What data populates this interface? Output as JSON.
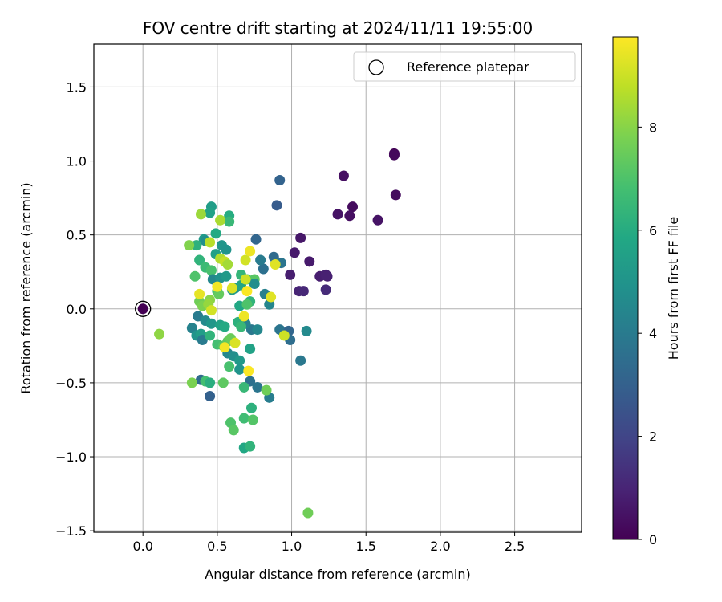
{
  "chart_data": {
    "type": "scatter",
    "title": "FOV centre drift starting at 2024/11/11 19:55:00",
    "xlabel": "Angular distance from reference (arcmin)",
    "ylabel": "Rotation from reference (arcmin)",
    "xlim": [
      -0.33,
      2.95
    ],
    "ylim": [
      -1.51,
      1.79
    ],
    "xticks": [
      0.0,
      0.5,
      1.0,
      1.5,
      2.0,
      2.5
    ],
    "xtick_labels": [
      "0.0",
      "0.5",
      "1.0",
      "1.5",
      "2.0",
      "2.5"
    ],
    "yticks": [
      -1.5,
      -1.0,
      -0.5,
      0.0,
      0.5,
      1.0,
      1.5
    ],
    "ytick_labels": [
      "−1.5",
      "−1.0",
      "−0.5",
      "0.0",
      "0.5",
      "1.0",
      "1.5"
    ],
    "grid": true,
    "legend": {
      "position": "top-right",
      "entries": [
        "Reference platepar"
      ]
    },
    "reference_point": {
      "x": 0.0,
      "y": 0.0,
      "label": "Reference platepar"
    },
    "colorbar": {
      "label": "Hours from first FF file",
      "colormap": "viridis",
      "range": [
        0,
        9.75
      ],
      "ticks": [
        0,
        2,
        4,
        6,
        8
      ],
      "tick_labels": [
        "0",
        "2",
        "4",
        "6",
        "8"
      ]
    },
    "points": [
      {
        "x": 1.69,
        "y": 1.05,
        "c": 0.1
      },
      {
        "x": 1.69,
        "y": 1.04,
        "c": 0.2
      },
      {
        "x": 1.7,
        "y": 0.77,
        "c": 0.3
      },
      {
        "x": 1.35,
        "y": 0.9,
        "c": 0.4
      },
      {
        "x": 1.41,
        "y": 0.69,
        "c": 0.3
      },
      {
        "x": 1.31,
        "y": 0.64,
        "c": 0.5
      },
      {
        "x": 1.39,
        "y": 0.63,
        "c": 0.4
      },
      {
        "x": 1.58,
        "y": 0.6,
        "c": 0.5
      },
      {
        "x": 1.06,
        "y": 0.48,
        "c": 0.6
      },
      {
        "x": 1.02,
        "y": 0.38,
        "c": 0.7
      },
      {
        "x": 1.12,
        "y": 0.32,
        "c": 0.7
      },
      {
        "x": 0.99,
        "y": 0.23,
        "c": 0.8
      },
      {
        "x": 1.19,
        "y": 0.22,
        "c": 0.8
      },
      {
        "x": 1.23,
        "y": 0.23,
        "c": 0.9
      },
      {
        "x": 1.24,
        "y": 0.22,
        "c": 0.9
      },
      {
        "x": 1.05,
        "y": 0.12,
        "c": 1.0
      },
      {
        "x": 1.08,
        "y": 0.12,
        "c": 1.1
      },
      {
        "x": 1.23,
        "y": 0.13,
        "c": 1.2
      },
      {
        "x": 0.92,
        "y": 0.87,
        "c": 3.1
      },
      {
        "x": 0.9,
        "y": 0.7,
        "c": 2.8
      },
      {
        "x": 0.76,
        "y": 0.47,
        "c": 3.2
      },
      {
        "x": 0.88,
        "y": 0.35,
        "c": 3.4
      },
      {
        "x": 0.93,
        "y": 0.31,
        "c": 3.8
      },
      {
        "x": 0.81,
        "y": 0.27,
        "c": 3.6
      },
      {
        "x": 0.79,
        "y": 0.33,
        "c": 4.0
      },
      {
        "x": 0.82,
        "y": 0.1,
        "c": 4.2
      },
      {
        "x": 0.85,
        "y": 0.03,
        "c": 4.4
      },
      {
        "x": 0.92,
        "y": -0.14,
        "c": 3.8
      },
      {
        "x": 0.98,
        "y": -0.15,
        "c": 3.2
      },
      {
        "x": 0.99,
        "y": -0.21,
        "c": 3.5
      },
      {
        "x": 1.1,
        "y": -0.15,
        "c": 4.6
      },
      {
        "x": 1.06,
        "y": -0.35,
        "c": 3.9
      },
      {
        "x": 0.45,
        "y": -0.59,
        "c": 3.0
      },
      {
        "x": 0.39,
        "y": -0.48,
        "c": 3.4
      },
      {
        "x": 0.72,
        "y": -0.49,
        "c": 3.6
      },
      {
        "x": 0.77,
        "y": -0.53,
        "c": 3.8
      },
      {
        "x": 0.85,
        "y": -0.6,
        "c": 4.1
      },
      {
        "x": 0.73,
        "y": -0.14,
        "c": 3.9
      },
      {
        "x": 0.69,
        "y": -0.1,
        "c": 4.3
      },
      {
        "x": 0.77,
        "y": -0.14,
        "c": 4.5
      },
      {
        "x": 0.46,
        "y": 0.69,
        "c": 5.4
      },
      {
        "x": 0.45,
        "y": 0.65,
        "c": 5.6
      },
      {
        "x": 0.58,
        "y": 0.63,
        "c": 6.0
      },
      {
        "x": 0.58,
        "y": 0.59,
        "c": 6.5
      },
      {
        "x": 0.49,
        "y": 0.51,
        "c": 5.9
      },
      {
        "x": 0.41,
        "y": 0.47,
        "c": 5.3
      },
      {
        "x": 0.42,
        "y": 0.46,
        "c": 4.8
      },
      {
        "x": 0.36,
        "y": 0.43,
        "c": 6.2
      },
      {
        "x": 0.53,
        "y": 0.43,
        "c": 5.1
      },
      {
        "x": 0.56,
        "y": 0.4,
        "c": 5.0
      },
      {
        "x": 0.49,
        "y": 0.37,
        "c": 5.5
      },
      {
        "x": 0.38,
        "y": 0.33,
        "c": 6.3
      },
      {
        "x": 0.42,
        "y": 0.28,
        "c": 6.6
      },
      {
        "x": 0.46,
        "y": 0.26,
        "c": 6.9
      },
      {
        "x": 0.35,
        "y": 0.22,
        "c": 7.0
      },
      {
        "x": 0.47,
        "y": 0.2,
        "c": 4.5
      },
      {
        "x": 0.52,
        "y": 0.21,
        "c": 4.9
      },
      {
        "x": 0.56,
        "y": 0.22,
        "c": 5.2
      },
      {
        "x": 0.66,
        "y": 0.23,
        "c": 6.4
      },
      {
        "x": 0.7,
        "y": 0.2,
        "c": 6.8
      },
      {
        "x": 0.75,
        "y": 0.2,
        "c": 7.2
      },
      {
        "x": 0.62,
        "y": 0.14,
        "c": 5.0
      },
      {
        "x": 0.6,
        "y": 0.13,
        "c": 5.3
      },
      {
        "x": 0.75,
        "y": 0.17,
        "c": 4.8
      },
      {
        "x": 0.66,
        "y": 0.16,
        "c": 5.7
      },
      {
        "x": 0.5,
        "y": 0.12,
        "c": 6.7
      },
      {
        "x": 0.51,
        "y": 0.1,
        "c": 7.4
      },
      {
        "x": 0.38,
        "y": 0.05,
        "c": 7.6
      },
      {
        "x": 0.4,
        "y": 0.02,
        "c": 7.8
      },
      {
        "x": 0.45,
        "y": 0.06,
        "c": 8.0
      },
      {
        "x": 0.44,
        "y": 0.03,
        "c": 8.2
      },
      {
        "x": 0.65,
        "y": 0.02,
        "c": 5.8
      },
      {
        "x": 0.72,
        "y": 0.05,
        "c": 6.3
      },
      {
        "x": 0.7,
        "y": 0.03,
        "c": 7.0
      },
      {
        "x": 0.37,
        "y": -0.05,
        "c": 4.0
      },
      {
        "x": 0.42,
        "y": -0.08,
        "c": 4.6
      },
      {
        "x": 0.46,
        "y": -0.1,
        "c": 5.1
      },
      {
        "x": 0.52,
        "y": -0.11,
        "c": 5.6
      },
      {
        "x": 0.55,
        "y": -0.12,
        "c": 5.9
      },
      {
        "x": 0.64,
        "y": -0.09,
        "c": 6.2
      },
      {
        "x": 0.66,
        "y": -0.12,
        "c": 6.5
      },
      {
        "x": 0.33,
        "y": -0.13,
        "c": 4.3
      },
      {
        "x": 0.36,
        "y": -0.18,
        "c": 5.0
      },
      {
        "x": 0.39,
        "y": -0.17,
        "c": 5.4
      },
      {
        "x": 0.4,
        "y": -0.21,
        "c": 4.0
      },
      {
        "x": 0.45,
        "y": -0.18,
        "c": 6.3
      },
      {
        "x": 0.5,
        "y": -0.24,
        "c": 6.8
      },
      {
        "x": 0.54,
        "y": -0.25,
        "c": 7.1
      },
      {
        "x": 0.57,
        "y": -0.22,
        "c": 7.3
      },
      {
        "x": 0.59,
        "y": -0.2,
        "c": 7.5
      },
      {
        "x": 0.57,
        "y": -0.3,
        "c": 4.5
      },
      {
        "x": 0.61,
        "y": -0.32,
        "c": 4.8
      },
      {
        "x": 0.65,
        "y": -0.35,
        "c": 5.2
      },
      {
        "x": 0.72,
        "y": -0.27,
        "c": 5.6
      },
      {
        "x": 0.65,
        "y": -0.41,
        "c": 5.0
      },
      {
        "x": 0.58,
        "y": -0.39,
        "c": 6.9
      },
      {
        "x": 0.33,
        "y": -0.5,
        "c": 7.8
      },
      {
        "x": 0.42,
        "y": -0.49,
        "c": 6.8
      },
      {
        "x": 0.45,
        "y": -0.5,
        "c": 6.1
      },
      {
        "x": 0.54,
        "y": -0.5,
        "c": 7.3
      },
      {
        "x": 0.68,
        "y": -0.53,
        "c": 6.5
      },
      {
        "x": 0.83,
        "y": -0.55,
        "c": 7.6
      },
      {
        "x": 0.73,
        "y": -0.67,
        "c": 6.2
      },
      {
        "x": 0.68,
        "y": -0.74,
        "c": 6.7
      },
      {
        "x": 0.74,
        "y": -0.75,
        "c": 7.1
      },
      {
        "x": 0.59,
        "y": -0.77,
        "c": 7.0
      },
      {
        "x": 0.61,
        "y": -0.82,
        "c": 7.2
      },
      {
        "x": 0.68,
        "y": -0.94,
        "c": 5.8
      },
      {
        "x": 0.72,
        "y": -0.93,
        "c": 6.3
      },
      {
        "x": 1.11,
        "y": -1.38,
        "c": 7.6
      },
      {
        "x": 0.11,
        "y": -0.17,
        "c": 8.1
      },
      {
        "x": 0.31,
        "y": 0.43,
        "c": 7.9
      },
      {
        "x": 0.39,
        "y": 0.64,
        "c": 8.3
      },
      {
        "x": 0.52,
        "y": 0.6,
        "c": 8.5
      },
      {
        "x": 0.45,
        "y": 0.45,
        "c": 8.7
      },
      {
        "x": 0.52,
        "y": 0.34,
        "c": 8.6
      },
      {
        "x": 0.55,
        "y": 0.32,
        "c": 8.9
      },
      {
        "x": 0.57,
        "y": 0.3,
        "c": 8.4
      },
      {
        "x": 0.69,
        "y": 0.33,
        "c": 9.1
      },
      {
        "x": 0.72,
        "y": 0.39,
        "c": 9.5
      },
      {
        "x": 0.89,
        "y": 0.3,
        "c": 9.3
      },
      {
        "x": 0.69,
        "y": 0.2,
        "c": 9.0
      },
      {
        "x": 0.5,
        "y": 0.15,
        "c": 9.6
      },
      {
        "x": 0.6,
        "y": 0.14,
        "c": 9.2
      },
      {
        "x": 0.38,
        "y": 0.1,
        "c": 9.4
      },
      {
        "x": 0.7,
        "y": 0.12,
        "c": 9.7
      },
      {
        "x": 0.86,
        "y": 0.08,
        "c": 9.3
      },
      {
        "x": 0.46,
        "y": -0.01,
        "c": 9.1
      },
      {
        "x": 0.68,
        "y": -0.05,
        "c": 9.5
      },
      {
        "x": 0.95,
        "y": -0.18,
        "c": 9.0
      },
      {
        "x": 0.62,
        "y": -0.23,
        "c": 9.2
      },
      {
        "x": 0.55,
        "y": -0.26,
        "c": 9.6
      },
      {
        "x": 0.71,
        "y": -0.42,
        "c": 9.7
      }
    ]
  }
}
